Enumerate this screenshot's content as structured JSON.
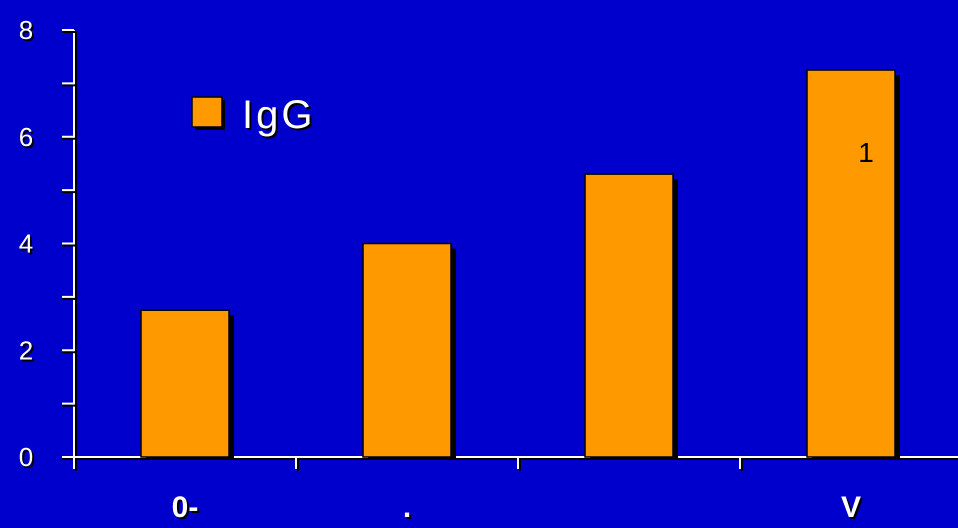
{
  "chart_data": {
    "type": "bar",
    "categories": [
      "0-",
      ".",
      "",
      "V"
    ],
    "series": [
      {
        "name": "IgG",
        "values": [
          2.75,
          4.0,
          5.3,
          7.25
        ]
      }
    ],
    "data_labels": [
      "",
      "",
      "",
      "1"
    ],
    "ylim": [
      0,
      8
    ],
    "yticks": [
      "0",
      "2",
      "4",
      "6",
      "8"
    ],
    "legend_position": "top-left",
    "grid": false
  },
  "colors": {
    "background": "#0000CC",
    "bar": "#FF9900",
    "axis": "#FFFFFF",
    "shadow": "#000000"
  }
}
